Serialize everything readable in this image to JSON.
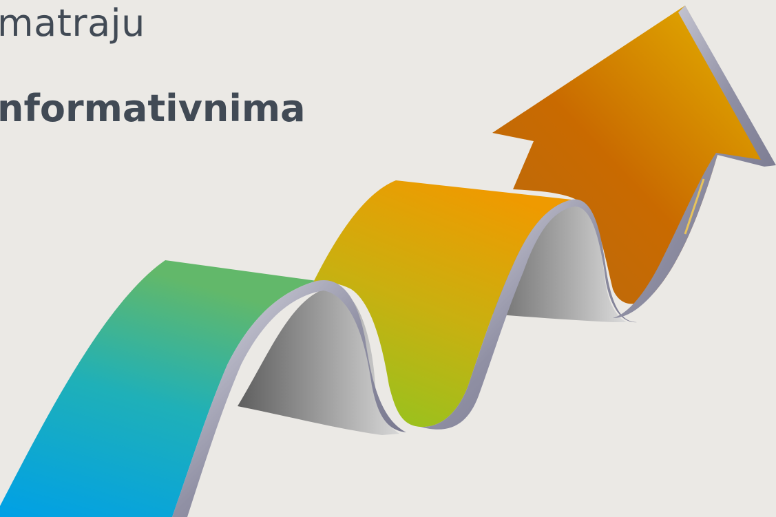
{
  "slide": {
    "title_line_1": "matraju",
    "title_line_2": "nformativnima"
  },
  "graphic": {
    "icon": "rising-wave-arrow-icon",
    "colors": {
      "background": "#ebe9e5",
      "text": "#414a55",
      "blue": "#00a0e6",
      "green": "#62b86a",
      "lime": "#95c31f",
      "orange": "#ef9a00",
      "dark_orange": "#c45f00",
      "gold": "#e6b800"
    }
  }
}
